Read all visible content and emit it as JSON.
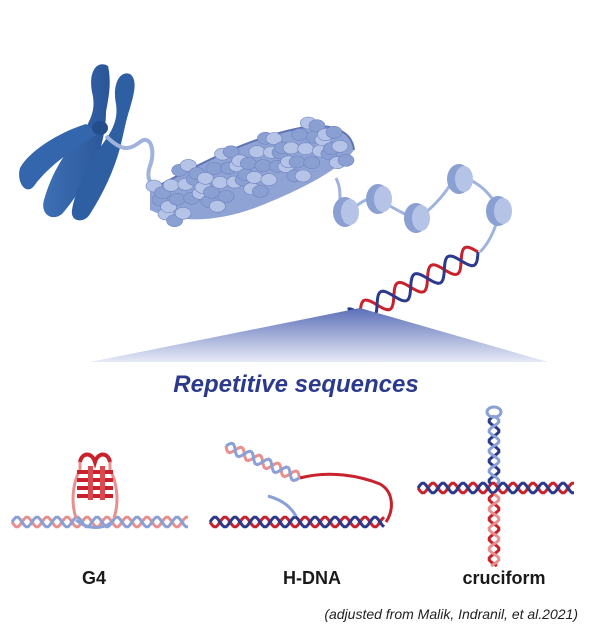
{
  "title": "Repetitive sequences",
  "structures": [
    {
      "label": "G4"
    },
    {
      "label": "H-DNA"
    },
    {
      "label": "cruciform"
    }
  ],
  "credit": "(adjusted from Malik, Indranil, et al.2021)",
  "colors": {
    "chromosome": "#2f5fa3",
    "chromatin": "#9fb3dd",
    "strand_red": "#c8232c",
    "strand_blue": "#2b3a8c",
    "strand_pink": "#e8908f",
    "strand_lightblue": "#8aa0d6",
    "title": "#2b3a8c"
  }
}
